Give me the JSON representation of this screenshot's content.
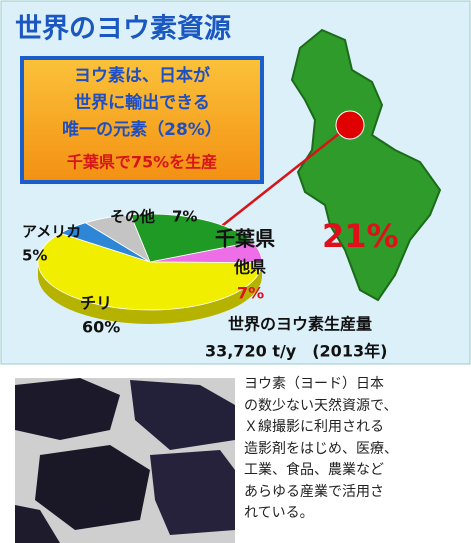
{
  "chart_data": {
    "type": "pie",
    "title": "世界のヨウ素資源",
    "box_lines": [
      "ヨウ素は、日本が",
      "世界に輸出できる",
      "唯一の元素（28%）",
      "千葉県で75%を生産"
    ],
    "categories": [
      "千葉県",
      "他県",
      "チリ",
      "アメリカ",
      "その他"
    ],
    "values": [
      21,
      7,
      60,
      5,
      7
    ],
    "value_labels": [
      "21%",
      "7%",
      "60%",
      "5%",
      "7%"
    ],
    "colors": [
      "#1f9a24",
      "#ee6ee8",
      "#f2ee00",
      "#2d86d6",
      "#c4c4c4"
    ],
    "subtitle": "世界のヨウ素生産量",
    "total": "33,720 t/y　(2013年)"
  },
  "caption": [
    "ヨウ素（ヨード）日本",
    "の数少ない天然資源で、",
    "Ｘ線撮影に利用される",
    "造影剤をはじめ、医療、",
    "工業、食品、農業など",
    "あらゆる産業で活用さ",
    "れている。"
  ]
}
